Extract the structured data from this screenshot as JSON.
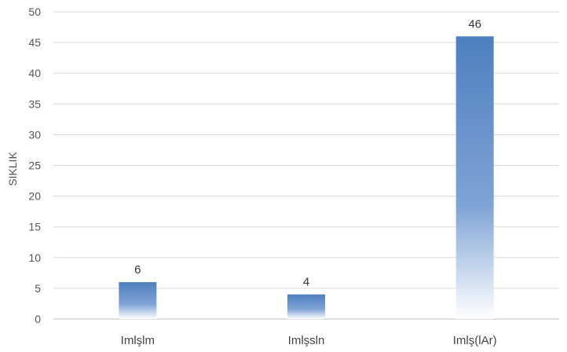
{
  "chart_data": {
    "type": "bar",
    "categories": [
      "Imlşlm",
      "Imlşsln",
      "Imlş(lAr)"
    ],
    "values": [
      6,
      4,
      46
    ],
    "data_labels": [
      "6",
      "4",
      "46"
    ],
    "ylabel": "SIKLIK",
    "xlabel": "",
    "ylim": [
      0,
      50
    ],
    "yticks": [
      0,
      5,
      10,
      15,
      20,
      25,
      30,
      35,
      40,
      45,
      50
    ],
    "grid": true,
    "legend": "none",
    "colors": {
      "bar_top": "#4f81bd",
      "bar_bottom": "#ffffff",
      "grid": "#d9d9d9",
      "text": "#555555"
    }
  }
}
